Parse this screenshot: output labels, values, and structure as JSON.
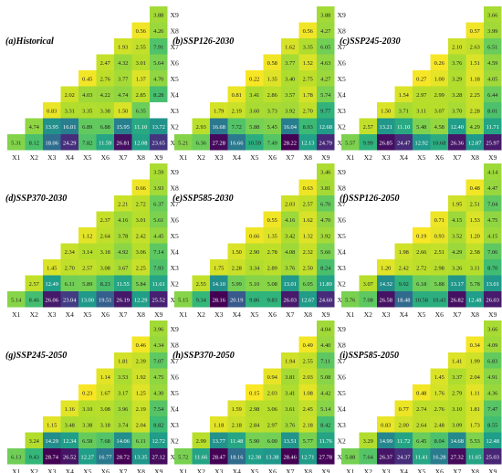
{
  "figure": {
    "colorscale": {
      "name": "viridis-reversed",
      "min": 0,
      "max": 28,
      "stops": [
        "#fde725",
        "#b5de2b",
        "#6ece58",
        "#35b779",
        "#1f9e89",
        "#26828e",
        "#31688e",
        "#3e4989",
        "#482878",
        "#440154"
      ]
    },
    "label_color_light": "#ffffff",
    "label_color_dark": "#222222"
  },
  "chart_data": [
    {
      "type": "heatmap",
      "shape": "lower-triangular",
      "title": "(a)Historical",
      "x_labels": [
        "X1",
        "X2",
        "X3",
        "X4",
        "X5",
        "X6",
        "X7",
        "X8",
        "X9"
      ],
      "y_labels": [
        "X1",
        "X2",
        "X3",
        "X4",
        "X5",
        "X6",
        "X7",
        "X8",
        "X9"
      ],
      "rows": [
        [
          5.31,
          8.12,
          18.06,
          24.29,
          7.82,
          11.59,
          26.81,
          12.08,
          23.65
        ],
        [
          4.74,
          13.95,
          16.01,
          6.89,
          6.88,
          15.95,
          11.1,
          13.72
        ],
        [
          0.83,
          3.31,
          3.35,
          3.38,
          1.5,
          6.35
        ],
        [
          2.02,
          4.03,
          4.22,
          4.74,
          2.85,
          8.28
        ],
        [
          0.45,
          2.76,
          3.77,
          1.37,
          4.7
        ],
        [
          2.47,
          4.32,
          3.01,
          5.64
        ],
        [
          1.93,
          2.55,
          7.91
        ],
        [
          0.56,
          4.26
        ],
        [
          3.88
        ]
      ]
    },
    {
      "type": "heatmap",
      "shape": "lower-triangular",
      "title": "(b)SSP126-2030",
      "x_labels": [
        "X1",
        "X2",
        "X3",
        "X4",
        "X5",
        "X6",
        "X7",
        "X8",
        "X9"
      ],
      "y_labels": [
        "X1",
        "X2",
        "X3",
        "X4",
        "X5",
        "X6",
        "X7",
        "X8",
        "X9"
      ],
      "rows": [
        [
          5.21,
          6.36,
          27.28,
          16.66,
          10.59,
          7.49,
          28.22,
          12.13,
          24.79
        ],
        [
          2.93,
          16.68,
          7.72,
          5.88,
          5.45,
          16.04,
          8.93,
          12.68
        ],
        [
          1.79,
          2.19,
          3.6,
          3.73,
          3.92,
          2.7,
          9.77
        ],
        [
          0.81,
          3.41,
          2.86,
          3.57,
          1.78,
          5.74
        ],
        [
          0.22,
          1.35,
          3.4,
          2.75,
          4.27
        ],
        [
          0.58,
          3.77,
          1.52,
          4.63
        ],
        [
          1.62,
          3.35,
          6.05
        ],
        [
          0.56,
          4.27
        ],
        [
          3.88
        ]
      ]
    },
    {
      "type": "heatmap",
      "shape": "lower-triangular",
      "title": "(c)SSP245-2030",
      "x_labels": [
        "X1",
        "X2",
        "X3",
        "X4",
        "X5",
        "X6",
        "X7",
        "X8",
        "X9"
      ],
      "y_labels": [
        "X1",
        "X2",
        "X3",
        "X4",
        "X5",
        "X6",
        "X7",
        "X8",
        "X9"
      ],
      "rows": [
        [
          5.57,
          9.99,
          26.85,
          24.47,
          12.92,
          10.68,
          26.36,
          12.87,
          25.97
        ],
        [
          2.57,
          13.21,
          11.1,
          5.48,
          4.58,
          12.4,
          4.29,
          11.71
        ],
        [
          1.5,
          3.71,
          3.11,
          3.07,
          3.7,
          2.28,
          8.01
        ],
        [
          1.54,
          2.97,
          2.99,
          3.28,
          2.25,
          6.44
        ],
        [
          0.27,
          1.0,
          3.29,
          1.18,
          4.05
        ],
        [
          0.26,
          3.76,
          1.51,
          4.59
        ],
        [
          2.1,
          2.63,
          6.51
        ],
        [
          0.57,
          3.99
        ],
        [
          3.66
        ]
      ]
    },
    {
      "type": "heatmap",
      "shape": "lower-triangular",
      "title": "(d)SSP370-2030",
      "x_labels": [
        "X1",
        "X2",
        "X3",
        "X4",
        "X5",
        "X6",
        "X7",
        "X8",
        "X9"
      ],
      "y_labels": [
        "X1",
        "X2",
        "X3",
        "X4",
        "X5",
        "X6",
        "X7",
        "X8",
        "X9"
      ],
      "rows": [
        [
          5.14,
          8.46,
          26.06,
          23.04,
          13.0,
          19.51,
          26.19,
          12.29,
          25.52
        ],
        [
          2.57,
          12.49,
          6.11,
          5.89,
          8.23,
          11.55,
          5.84,
          11.61
        ],
        [
          1.45,
          2.7,
          2.57,
          3.08,
          3.67,
          2.25,
          7.93
        ],
        [
          2.34,
          3.14,
          3.18,
          4.92,
          3.06,
          7.14
        ],
        [
          1.12,
          2.64,
          3.78,
          2.42,
          4.45
        ],
        [
          2.37,
          4.16,
          3.01,
          5.61
        ],
        [
          2.21,
          2.72,
          6.37
        ],
        [
          0.66,
          3.93
        ],
        [
          3.59
        ]
      ]
    },
    {
      "type": "heatmap",
      "shape": "lower-triangular",
      "title": "(e)SSP585-2030",
      "x_labels": [
        "X1",
        "X2",
        "X3",
        "X4",
        "X5",
        "X6",
        "X7",
        "X8",
        "X9"
      ],
      "y_labels": [
        "X1",
        "X2",
        "X3",
        "X4",
        "X5",
        "X6",
        "X7",
        "X8",
        "X9"
      ],
      "rows": [
        [
          5.15,
          9.34,
          28.16,
          20.19,
          9.86,
          9.83,
          26.03,
          12.67,
          24.6
        ],
        [
          2.55,
          14.1,
          5.99,
          5.1,
          5.08,
          13.01,
          6.05,
          11.89
        ],
        [
          1.75,
          2.28,
          3.34,
          2.89,
          3.76,
          2.5,
          8.24
        ],
        [
          1.5,
          2.9,
          2.78,
          4.08,
          2.32,
          5.66
        ],
        [
          0.66,
          1.35,
          3.42,
          1.32,
          3.92
        ],
        [
          0.55,
          4.16,
          1.62,
          4.7
        ],
        [
          2.03,
          2.57,
          6.7
        ],
        [
          0.63,
          3.81
        ],
        [
          3.46
        ]
      ]
    },
    {
      "type": "heatmap",
      "shape": "lower-triangular",
      "title": "(f)SSP126-2050",
      "x_labels": [
        "X1",
        "X2",
        "X3",
        "X4",
        "X5",
        "X6",
        "X7",
        "X8",
        "X9"
      ],
      "y_labels": [
        "X1",
        "X2",
        "X3",
        "X4",
        "X5",
        "X6",
        "X7",
        "X8",
        "X9"
      ],
      "rows": [
        [
          5.76,
          7.08,
          26.58,
          18.48,
          10.58,
          10.43,
          26.82,
          12.48,
          26.03
        ],
        [
          3.07,
          14.32,
          9.92,
          6.18,
          5.88,
          13.17,
          5.78,
          13.01
        ],
        [
          1.2,
          2.42,
          2.72,
          2.98,
          3.26,
          3.11,
          8.7
        ],
        [
          1.98,
          2.66,
          2.51,
          4.29,
          2.58,
          7.06
        ],
        [
          0.19,
          0.93,
          3.52,
          1.2,
          4.15
        ],
        [
          0.71,
          4.15,
          1.53,
          4.75
        ],
        [
          1.95,
          2.51,
          7.04
        ],
        [
          0.48,
          4.47
        ],
        [
          4.14
        ]
      ]
    },
    {
      "type": "heatmap",
      "shape": "lower-triangular",
      "title": "(g)SSP245-2050",
      "x_labels": [
        "X1",
        "X2",
        "X3",
        "X4",
        "X5",
        "X6",
        "X7",
        "X8",
        "X9"
      ],
      "y_labels": [
        "X1",
        "X2",
        "X3",
        "X4",
        "X5",
        "X6",
        "X7",
        "X8",
        "X9"
      ],
      "rows": [
        [
          6.13,
          9.43,
          28.74,
          26.52,
          12.27,
          16.77,
          28.72,
          13.35,
          27.12
        ],
        [
          3.24,
          14.29,
          12.34,
          6.58,
          7.68,
          14.06,
          6.11,
          12.72
        ],
        [
          1.15,
          3.48,
          3.38,
          3.18,
          3.74,
          2.04,
          8.82
        ],
        [
          1.16,
          3.1,
          3.08,
          3.96,
          2.19,
          7.54
        ],
        [
          0.23,
          1.67,
          3.17,
          1.25,
          4.3
        ],
        [
          1.14,
          3.53,
          1.92,
          4.75
        ],
        [
          1.81,
          2.39,
          7.07
        ],
        [
          0.46,
          4.34
        ],
        [
          3.96
        ]
      ]
    },
    {
      "type": "heatmap",
      "shape": "lower-triangular",
      "title": "(h)SSP370-2050",
      "x_labels": [
        "X1",
        "X2",
        "X3",
        "X4",
        "X5",
        "X6",
        "X7",
        "X8",
        "X9"
      ],
      "y_labels": [
        "X1",
        "X2",
        "X3",
        "X4",
        "X5",
        "X6",
        "X7",
        "X8",
        "X9"
      ],
      "rows": [
        [
          5.72,
          11.66,
          28.47,
          18.16,
          12.38,
          13.38,
          28.46,
          12.71,
          27.78
        ],
        [
          2.99,
          13.77,
          11.48,
          5.9,
          6.0,
          13.51,
          5.77,
          11.76
        ],
        [
          1.18,
          2.18,
          2.84,
          2.97,
          3.76,
          2.18,
          8.42
        ],
        [
          1.59,
          2.98,
          3.06,
          3.61,
          2.45,
          5.14
        ],
        [
          0.15,
          2.03,
          3.41,
          1.08,
          4.42
        ],
        [
          0.94,
          3.81,
          2.03,
          5.08
        ],
        [
          1.94,
          2.55,
          7.11
        ],
        [
          0.49,
          4.4
        ],
        [
          4.04
        ]
      ]
    },
    {
      "type": "heatmap",
      "shape": "lower-triangular",
      "title": "(i)SSP585-2050",
      "x_labels": [
        "X1",
        "X2",
        "X3",
        "X4",
        "X5",
        "X6",
        "X7",
        "X8",
        "X9"
      ],
      "y_labels": [
        "X1",
        "X2",
        "X3",
        "X4",
        "X5",
        "X6",
        "X7",
        "X8",
        "X9"
      ],
      "rows": [
        [
          5.88,
          7.64,
          26.37,
          24.37,
          11.41,
          16.28,
          27.32,
          11.65,
          25.03
        ],
        [
          3.29,
          14.99,
          11.72,
          6.45,
          8.04,
          14.68,
          5.53,
          12.48
        ],
        [
          0.83,
          2.0,
          2.64,
          2.48,
          3.09,
          1.73,
          8.55
        ],
        [
          0.77,
          2.74,
          2.76,
          3.1,
          1.81,
          7.47
        ],
        [
          0.48,
          1.76,
          2.79,
          1.11,
          4.36
        ],
        [
          1.45,
          3.37,
          2.04,
          4.91
        ],
        [
          1.41,
          1.99,
          6.83
        ],
        [
          0.34,
          4.09
        ],
        [
          3.66
        ]
      ]
    }
  ]
}
